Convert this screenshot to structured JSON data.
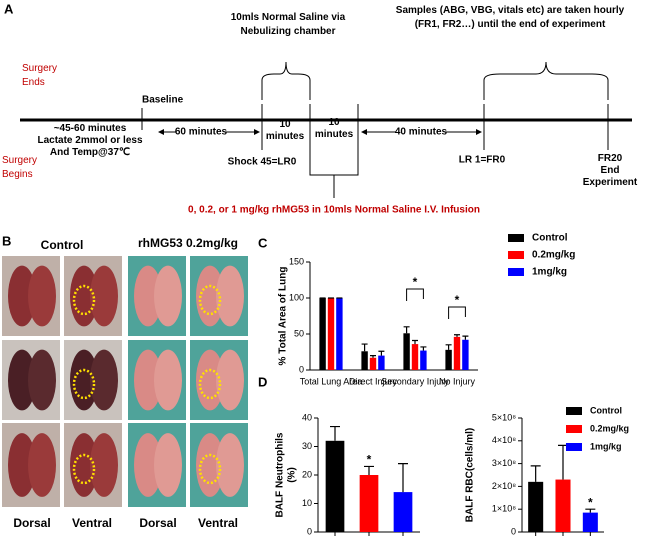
{
  "panel_a": {
    "label": "A",
    "nebulizer": [
      "10mls Normal Saline via",
      "Nebulizing chamber"
    ],
    "samples": [
      "Samples (ABG, VBG, vitals etc) are taken hourly",
      "(FR1, FR2…) until the end of experiment"
    ],
    "surgery_ends": [
      "Surgery",
      "Ends"
    ],
    "baseline": "Baseline",
    "stabilization": [
      "~45-60 minutes",
      "Lactate  2mmol or less",
      "And Temp@37℃"
    ],
    "interval_60": "60 minutes",
    "interval_10a": [
      "10",
      "minutes"
    ],
    "interval_10b": [
      "10",
      "minutes"
    ],
    "interval_40": "40 minutes",
    "surgery_begins": [
      "Surgery",
      "Begins"
    ],
    "shock": "Shock 45=LR0",
    "lr1": "LR 1=FR0",
    "end": [
      "FR20",
      "End",
      "Experiment"
    ],
    "infusion": "0, 0.2, or 1 mg/kg rhMG53 in 10mls Normal Saline I.V. Infusion"
  },
  "panel_b": {
    "label": "B",
    "control": "Control",
    "treated": "rhMG53 0.2mg/kg",
    "views": [
      "Dorsal",
      "Ventral",
      "Dorsal",
      "Ventral"
    ]
  },
  "panel_labels": [
    "C",
    "D"
  ],
  "chart_data": [
    {
      "type": "bar",
      "ylabel": "%  Total Area of Lung",
      "categories": [
        "Total Lung Area",
        "Direct Injury",
        "Secondary Injury",
        "No Injury"
      ],
      "series": [
        {
          "name": "Control",
          "color": "#000000",
          "values": [
            100,
            26,
            51,
            28
          ],
          "errors": [
            0,
            10,
            9,
            7
          ]
        },
        {
          "name": "0.2mg/kg",
          "color": "#ff0000",
          "values": [
            100,
            17,
            36,
            46
          ],
          "errors": [
            0,
            3,
            5,
            3
          ]
        },
        {
          "name": "1mg/kg",
          "color": "#0000ff",
          "values": [
            100,
            20,
            27,
            42
          ],
          "errors": [
            0,
            6,
            5,
            5
          ]
        }
      ],
      "ylim": [
        0,
        150
      ],
      "yticks": [
        0,
        50,
        100,
        150
      ],
      "annotations": [
        "*",
        "*"
      ]
    },
    {
      "type": "bar",
      "ylabel": [
        "BALF Neutrophils",
        "(%)"
      ],
      "values": [
        32,
        20,
        14
      ],
      "errors": [
        5,
        3,
        10
      ],
      "colors": [
        "#000000",
        "#ff0000",
        "#0000ff"
      ],
      "ylim": [
        0,
        40
      ],
      "yticks": [
        0,
        10,
        20,
        30,
        40
      ],
      "annotations": [
        "*"
      ]
    },
    {
      "type": "bar",
      "ylabel": "BALF RBC(cells/ml)",
      "values": [
        220000000,
        230000000,
        85000000
      ],
      "errors": [
        70000000,
        150000000,
        15000000
      ],
      "colors": [
        "#000000",
        "#ff0000",
        "#0000ff"
      ],
      "legend": [
        "Control",
        "0.2mg/kg",
        "1mg/kg"
      ],
      "ylim": [
        0,
        500000000
      ],
      "yticks": [
        0,
        {
          "value": 100000000,
          "label": "1×10⁸"
        },
        {
          "value": 200000000,
          "label": "2×10⁸"
        },
        {
          "value": 300000000,
          "label": "3×10⁸"
        },
        {
          "value": 400000000,
          "label": "4×10⁸"
        },
        {
          "value": 500000000,
          "label": "5×10⁸"
        }
      ],
      "annotations": [
        "*"
      ]
    }
  ]
}
